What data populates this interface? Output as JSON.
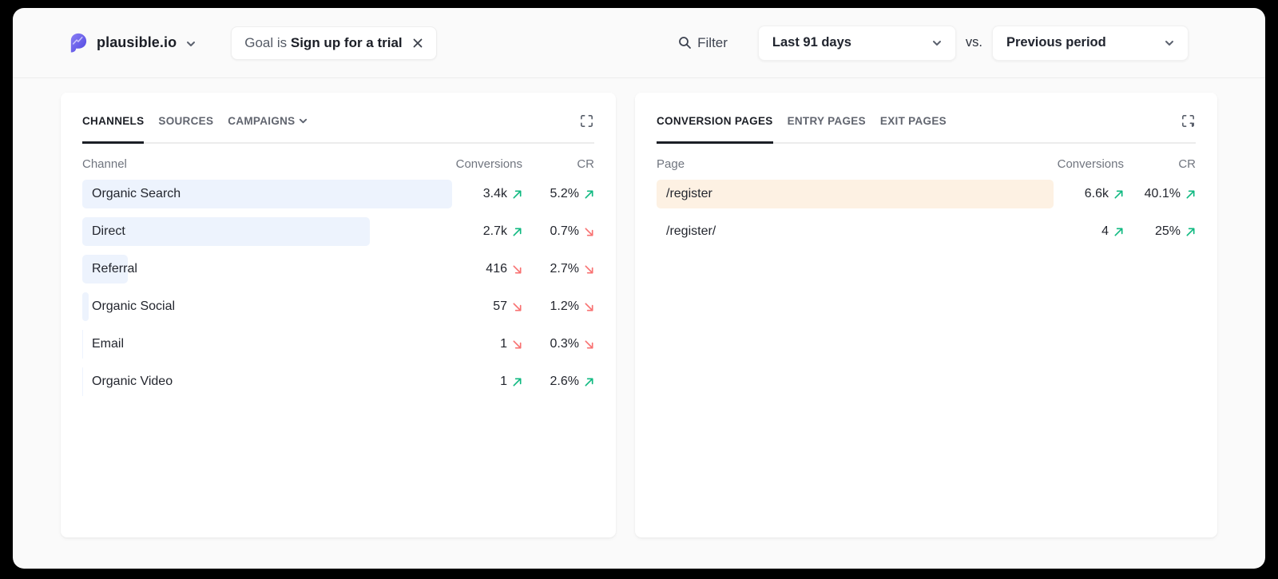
{
  "topbar": {
    "site_name": "plausible.io",
    "goal_filter": {
      "prefix": "Goal is",
      "value": "Sign up for a trial"
    },
    "filter_label": "Filter",
    "date_range": "Last 91 days",
    "vs_label": "vs.",
    "comparison": "Previous period"
  },
  "colors": {
    "trend_up": "#10b981",
    "trend_down": "#f87171",
    "channels_bar": "#edf3fd",
    "pages_bar": "#fdf1e3",
    "brand_purple": "#5d51e8"
  },
  "channels_card": {
    "tabs": [
      {
        "label": "Channels",
        "active": true
      },
      {
        "label": "Sources",
        "active": false
      },
      {
        "label": "Campaigns",
        "active": false,
        "has_chevron": true
      }
    ],
    "columns": {
      "label": "Channel",
      "conversions": "Conversions",
      "cr": "CR"
    },
    "rows": [
      {
        "label": "Organic Search",
        "bar_pct": 100,
        "conversions": "3.4k",
        "conv_dir": "up",
        "cr": "5.2%",
        "cr_dir": "up"
      },
      {
        "label": "Direct",
        "bar_pct": 77.7,
        "conversions": "2.7k",
        "conv_dir": "up",
        "cr": "0.7%",
        "cr_dir": "down"
      },
      {
        "label": "Referral",
        "bar_pct": 12.3,
        "conversions": "416",
        "conv_dir": "down",
        "cr": "2.7%",
        "cr_dir": "down"
      },
      {
        "label": "Organic Social",
        "bar_pct": 1.7,
        "conversions": "57",
        "conv_dir": "down",
        "cr": "1.2%",
        "cr_dir": "down"
      },
      {
        "label": "Email",
        "bar_pct": 0.3,
        "conversions": "1",
        "conv_dir": "down",
        "cr": "0.3%",
        "cr_dir": "down"
      },
      {
        "label": "Organic Video",
        "bar_pct": 0.3,
        "conversions": "1",
        "conv_dir": "up",
        "cr": "2.6%",
        "cr_dir": "up"
      }
    ]
  },
  "pages_card": {
    "tabs": [
      {
        "label": "Conversion Pages",
        "active": true
      },
      {
        "label": "Entry Pages",
        "active": false
      },
      {
        "label": "Exit Pages",
        "active": false
      }
    ],
    "columns": {
      "label": "Page",
      "conversions": "Conversions",
      "cr": "CR"
    },
    "rows": [
      {
        "label": "/register",
        "bar_pct": 100,
        "conversions": "6.6k",
        "conv_dir": "up",
        "cr": "40.1%",
        "cr_dir": "up"
      },
      {
        "label": "/register/",
        "bar_pct": 0,
        "conversions": "4",
        "conv_dir": "up",
        "cr": "25%",
        "cr_dir": "up"
      }
    ]
  }
}
